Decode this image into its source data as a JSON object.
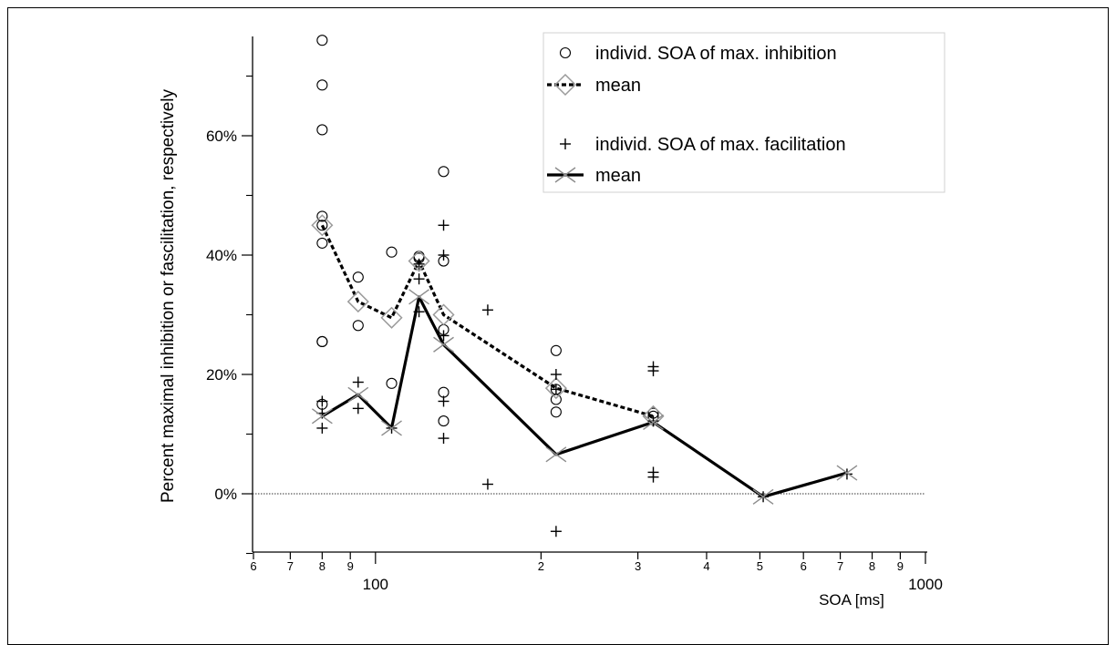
{
  "chart_data": {
    "type": "scatter",
    "title": "",
    "xlabel": "SOA [ms]",
    "ylabel": "Percent maximal inhibition or fascilitation, respectively",
    "x_scale": "log",
    "xlim": [
      60,
      1000
    ],
    "ylim": [
      -10,
      75
    ],
    "grid": false,
    "legend_position": "top-right",
    "x_ticks": [
      {
        "v": 60,
        "label": "6",
        "major": false
      },
      {
        "v": 70,
        "label": "7",
        "major": false
      },
      {
        "v": 80,
        "label": "8",
        "major": false
      },
      {
        "v": 90,
        "label": "9",
        "major": false
      },
      {
        "v": 100,
        "label": "100",
        "major": true
      },
      {
        "v": 200,
        "label": "2",
        "major": false
      },
      {
        "v": 300,
        "label": "3",
        "major": false
      },
      {
        "v": 400,
        "label": "4",
        "major": false
      },
      {
        "v": 500,
        "label": "5",
        "major": false
      },
      {
        "v": 600,
        "label": "6",
        "major": false
      },
      {
        "v": 700,
        "label": "7",
        "major": false
      },
      {
        "v": 800,
        "label": "8",
        "major": false
      },
      {
        "v": 900,
        "label": "9",
        "major": false
      },
      {
        "v": 1000,
        "label": "1000",
        "major": true
      }
    ],
    "y_ticks": [
      {
        "v": 0,
        "label": "0%"
      },
      {
        "v": 20,
        "label": "20%"
      },
      {
        "v": 40,
        "label": "40%"
      },
      {
        "v": 60,
        "label": "60%"
      }
    ],
    "y_minor_ticks": [
      -10,
      10,
      30,
      50,
      70
    ],
    "reference_line": {
      "y": 0,
      "style": "dotted"
    },
    "series": [
      {
        "name": "individ. SOA of max. inhibition",
        "marker": "circle",
        "line": "none",
        "x": [
          80,
          80,
          80,
          80,
          80,
          80,
          80,
          80,
          80,
          93,
          93,
          107,
          107,
          120,
          120,
          133,
          133,
          133,
          133,
          133,
          213,
          213,
          213,
          213,
          320,
          320
        ],
        "y": [
          76,
          68.5,
          61,
          46.5,
          45,
          42,
          25.5,
          25.5,
          15,
          36.3,
          28.2,
          40.5,
          18.5,
          39.8,
          39.5,
          54,
          39,
          27.5,
          17,
          12.2,
          24,
          17.5,
          15.8,
          13.7,
          13.5,
          13
        ]
      },
      {
        "name": "mean",
        "marker": "diamond",
        "line": "dashed",
        "color": "#000000",
        "marker_color": "#9a9a9a",
        "x": [
          80,
          93,
          107,
          120,
          133,
          213,
          320
        ],
        "y": [
          45,
          32.2,
          29.5,
          39,
          30,
          17.7,
          13
        ]
      },
      {
        "name": "individ. SOA of max. facilitation",
        "marker": "plus",
        "line": "none",
        "x": [
          80,
          80,
          80,
          93,
          93,
          107,
          120,
          120,
          120,
          133,
          133,
          133,
          133,
          133,
          160,
          160,
          213,
          213,
          213,
          320,
          320,
          320,
          320,
          320,
          507,
          720
        ],
        "y": [
          15.5,
          13.5,
          11,
          18.7,
          14.3,
          11,
          38.5,
          36,
          30.5,
          45,
          40,
          26.5,
          15.5,
          9.3,
          30.8,
          1.6,
          20,
          17.5,
          -6.3,
          21.3,
          20.6,
          12.2,
          3.6,
          2.8,
          -0.5,
          3.3
        ]
      },
      {
        "name": "mean",
        "marker": "x",
        "line": "solid",
        "color": "#000000",
        "marker_color": "#8c8c8c",
        "x": [
          80,
          93,
          107,
          120,
          133,
          213,
          320,
          507,
          720
        ],
        "y": [
          13,
          16.6,
          11,
          33,
          25,
          6.6,
          12,
          -0.5,
          3.5
        ]
      }
    ]
  }
}
